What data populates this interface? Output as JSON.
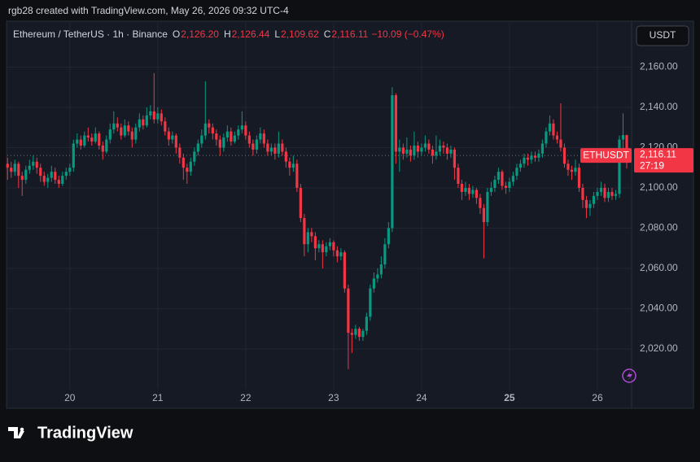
{
  "attribution": "rgb28 created with TradingView.com, May 26, 2026 09:32 UTC-4",
  "logo": "TradingView",
  "chart_data": {
    "type": "candlestick",
    "title": "Ethereum / TetherUS · 1h · Binance",
    "legend_ohlc": [
      {
        "label": "O",
        "value": "2,126.20"
      },
      {
        "label": "H",
        "value": "2,126.44"
      },
      {
        "label": "L",
        "value": "2,109.62"
      },
      {
        "label": "C",
        "value": "2,116.11"
      }
    ],
    "change": "−10.09 (−0.47%)",
    "currency": "USDT",
    "symbol": "ETHUSDT",
    "countdown": "27:19",
    "last_price": {
      "value": 2116.11,
      "label": "2,116.11"
    },
    "up_color": "#089981",
    "down_color": "#f23645",
    "grid": true,
    "xlim": [
      19.28,
      26.38
    ],
    "xticks": [
      20,
      21,
      22,
      23,
      24,
      25,
      26
    ],
    "ylim": [
      2000,
      2182
    ],
    "yticks": [
      {
        "value": 2020,
        "label": "2,020.00"
      },
      {
        "value": 2040,
        "label": "2,040.00"
      },
      {
        "value": 2060,
        "label": "2,060.00"
      },
      {
        "value": 2080,
        "label": "2,080.00"
      },
      {
        "value": 2100,
        "label": "2,100.00"
      },
      {
        "value": 2120,
        "label": "2,120.00"
      },
      {
        "value": 2140,
        "label": "2,140.00"
      },
      {
        "value": 2160,
        "label": "2,160.00"
      }
    ],
    "x": [
      19.2917,
      19.3333,
      19.375,
      19.4167,
      19.4583,
      19.5,
      19.5417,
      19.5833,
      19.625,
      19.6667,
      19.7083,
      19.75,
      19.7917,
      19.8333,
      19.875,
      19.9167,
      19.9583,
      20,
      20.0417,
      20.0833,
      20.125,
      20.1667,
      20.2083,
      20.25,
      20.2917,
      20.3333,
      20.375,
      20.4167,
      20.4583,
      20.5,
      20.5417,
      20.5833,
      20.625,
      20.6667,
      20.7083,
      20.75,
      20.7917,
      20.8333,
      20.875,
      20.9167,
      20.9583,
      21,
      21.0417,
      21.0833,
      21.125,
      21.1667,
      21.2083,
      21.25,
      21.2917,
      21.3333,
      21.375,
      21.4167,
      21.4583,
      21.5,
      21.5417,
      21.5833,
      21.625,
      21.6667,
      21.7083,
      21.75,
      21.7917,
      21.8333,
      21.875,
      21.9167,
      21.9583,
      22,
      22.0417,
      22.0833,
      22.125,
      22.1667,
      22.2083,
      22.25,
      22.2917,
      22.3333,
      22.375,
      22.4167,
      22.4583,
      22.5,
      22.5417,
      22.5833,
      22.625,
      22.6667,
      22.7083,
      22.75,
      22.7917,
      22.8333,
      22.875,
      22.9167,
      22.9583,
      23,
      23.0417,
      23.0833,
      23.125,
      23.1667,
      23.2083,
      23.25,
      23.2917,
      23.3333,
      23.375,
      23.4167,
      23.4583,
      23.5,
      23.5417,
      23.5833,
      23.625,
      23.6667,
      23.7083,
      23.75,
      23.7917,
      23.8333,
      23.875,
      23.9167,
      23.9583,
      24,
      24.0417,
      24.0833,
      24.125,
      24.1667,
      24.2083,
      24.25,
      24.2917,
      24.3333,
      24.375,
      24.4167,
      24.4583,
      24.5,
      24.5417,
      24.5833,
      24.625,
      24.6667,
      24.7083,
      24.75,
      24.7917,
      24.8333,
      24.875,
      24.9167,
      24.9583,
      25,
      25.0417,
      25.0833,
      25.125,
      25.1667,
      25.2083,
      25.25,
      25.2917,
      25.3333,
      25.375,
      25.4167,
      25.4583,
      25.5,
      25.5417,
      25.5833,
      25.625,
      25.6667,
      25.7083,
      25.75,
      25.7917,
      25.8333,
      25.875,
      25.9167,
      25.9583,
      26,
      26.0417,
      26.0833,
      26.125,
      26.1667,
      26.2083,
      26.25,
      26.2917,
      26.3333
    ],
    "ohlc": [
      [
        2112,
        2115,
        2104,
        2110
      ],
      [
        2110,
        2113,
        2105,
        2108
      ],
      [
        2108,
        2114,
        2106,
        2112
      ],
      [
        2112,
        2113,
        2100,
        2106
      ],
      [
        2106,
        2108,
        2096,
        2104
      ],
      [
        2104,
        2111,
        2102,
        2109
      ],
      [
        2109,
        2114,
        2107,
        2111
      ],
      [
        2111,
        2116,
        2109,
        2113
      ],
      [
        2113,
        2115,
        2107,
        2110
      ],
      [
        2110,
        2112,
        2103,
        2106
      ],
      [
        2106,
        2108,
        2101,
        2103
      ],
      [
        2103,
        2107,
        2100,
        2105
      ],
      [
        2105,
        2111,
        2103,
        2108
      ],
      [
        2108,
        2110,
        2102,
        2104
      ],
      [
        2104,
        2106,
        2100,
        2102
      ],
      [
        2102,
        2108,
        2101,
        2106
      ],
      [
        2106,
        2110,
        2104,
        2108
      ],
      [
        2108,
        2112,
        2106,
        2110
      ],
      [
        2110,
        2124,
        2108,
        2122
      ],
      [
        2122,
        2127,
        2120,
        2124
      ],
      [
        2124,
        2126,
        2119,
        2121
      ],
      [
        2121,
        2128,
        2120,
        2126
      ],
      [
        2126,
        2130,
        2123,
        2125
      ],
      [
        2125,
        2127,
        2121,
        2123
      ],
      [
        2123,
        2130,
        2122,
        2127
      ],
      [
        2127,
        2128,
        2119,
        2121
      ],
      [
        2121,
        2123,
        2114,
        2118
      ],
      [
        2118,
        2126,
        2117,
        2124
      ],
      [
        2124,
        2132,
        2122,
        2129
      ],
      [
        2129,
        2138,
        2127,
        2132
      ],
      [
        2132,
        2135,
        2128,
        2130
      ],
      [
        2130,
        2132,
        2124,
        2126
      ],
      [
        2126,
        2134,
        2125,
        2131
      ],
      [
        2131,
        2133,
        2126,
        2128
      ],
      [
        2128,
        2130,
        2120,
        2124
      ],
      [
        2124,
        2132,
        2122,
        2130
      ],
      [
        2130,
        2137,
        2128,
        2134
      ],
      [
        2134,
        2136,
        2129,
        2131
      ],
      [
        2131,
        2140,
        2130,
        2136
      ],
      [
        2136,
        2141,
        2134,
        2138
      ],
      [
        2138,
        2157,
        2132,
        2134
      ],
      [
        2134,
        2140,
        2132,
        2137
      ],
      [
        2137,
        2139,
        2131,
        2133
      ],
      [
        2133,
        2135,
        2126,
        2128
      ],
      [
        2128,
        2130,
        2121,
        2124
      ],
      [
        2124,
        2128,
        2122,
        2126
      ],
      [
        2126,
        2127,
        2117,
        2120
      ],
      [
        2120,
        2122,
        2112,
        2115
      ],
      [
        2115,
        2117,
        2104,
        2110
      ],
      [
        2110,
        2112,
        2102,
        2108
      ],
      [
        2108,
        2115,
        2106,
        2113
      ],
      [
        2113,
        2120,
        2111,
        2118
      ],
      [
        2118,
        2124,
        2116,
        2122
      ],
      [
        2122,
        2129,
        2120,
        2126
      ],
      [
        2126,
        2153,
        2124,
        2132
      ],
      [
        2132,
        2134,
        2127,
        2130
      ],
      [
        2130,
        2132,
        2124,
        2127
      ],
      [
        2127,
        2129,
        2121,
        2124
      ],
      [
        2124,
        2126,
        2116,
        2120
      ],
      [
        2120,
        2127,
        2118,
        2125
      ],
      [
        2125,
        2131,
        2123,
        2128
      ],
      [
        2128,
        2130,
        2121,
        2123
      ],
      [
        2123,
        2128,
        2122,
        2126
      ],
      [
        2126,
        2131,
        2124,
        2129
      ],
      [
        2129,
        2138,
        2127,
        2131
      ],
      [
        2131,
        2133,
        2124,
        2126
      ],
      [
        2126,
        2128,
        2120,
        2122
      ],
      [
        2122,
        2124,
        2116,
        2119
      ],
      [
        2119,
        2126,
        2117,
        2124
      ],
      [
        2124,
        2130,
        2122,
        2127
      ],
      [
        2127,
        2129,
        2120,
        2122
      ],
      [
        2122,
        2124,
        2116,
        2118
      ],
      [
        2118,
        2122,
        2116,
        2120
      ],
      [
        2120,
        2122,
        2114,
        2117
      ],
      [
        2117,
        2128,
        2115,
        2122
      ],
      [
        2122,
        2124,
        2116,
        2118
      ],
      [
        2118,
        2120,
        2110,
        2113
      ],
      [
        2113,
        2115,
        2106,
        2110
      ],
      [
        2110,
        2116,
        2108,
        2112
      ],
      [
        2112,
        2114,
        2098,
        2100
      ],
      [
        2100,
        2102,
        2083,
        2085
      ],
      [
        2085,
        2087,
        2066,
        2072
      ],
      [
        2072,
        2080,
        2068,
        2078
      ],
      [
        2078,
        2080,
        2073,
        2076
      ],
      [
        2076,
        2078,
        2064,
        2070
      ],
      [
        2070,
        2074,
        2068,
        2072
      ],
      [
        2072,
        2074,
        2060,
        2068
      ],
      [
        2068,
        2073,
        2066,
        2071
      ],
      [
        2071,
        2075,
        2069,
        2073
      ],
      [
        2073,
        2074,
        2066,
        2069
      ],
      [
        2069,
        2071,
        2063,
        2066
      ],
      [
        2066,
        2070,
        2064,
        2068
      ],
      [
        2068,
        2069,
        2048,
        2050
      ],
      [
        2050,
        2052,
        2010,
        2028
      ],
      [
        2028,
        2030,
        2018,
        2027
      ],
      [
        2027,
        2032,
        2025,
        2030
      ],
      [
        2030,
        2031,
        2024,
        2026
      ],
      [
        2026,
        2030,
        2024,
        2029
      ],
      [
        2029,
        2038,
        2027,
        2036
      ],
      [
        2036,
        2052,
        2034,
        2050
      ],
      [
        2050,
        2058,
        2048,
        2055
      ],
      [
        2055,
        2060,
        2053,
        2057
      ],
      [
        2057,
        2066,
        2055,
        2062
      ],
      [
        2062,
        2075,
        2060,
        2072
      ],
      [
        2072,
        2083,
        2070,
        2080
      ],
      [
        2080,
        2150,
        2078,
        2146
      ],
      [
        2146,
        2147,
        2112,
        2118
      ],
      [
        2118,
        2124,
        2108,
        2120
      ],
      [
        2120,
        2122,
        2114,
        2117
      ],
      [
        2117,
        2125,
        2115,
        2119
      ],
      [
        2119,
        2121,
        2113,
        2116
      ],
      [
        2116,
        2128,
        2114,
        2121
      ],
      [
        2121,
        2123,
        2115,
        2118
      ],
      [
        2118,
        2122,
        2116,
        2120
      ],
      [
        2120,
        2126,
        2118,
        2122
      ],
      [
        2122,
        2124,
        2117,
        2119
      ],
      [
        2119,
        2121,
        2112,
        2116
      ],
      [
        2116,
        2126,
        2114,
        2118
      ],
      [
        2118,
        2124,
        2116,
        2121
      ],
      [
        2121,
        2123,
        2117,
        2120
      ],
      [
        2120,
        2122,
        2114,
        2117
      ],
      [
        2117,
        2121,
        2115,
        2119
      ],
      [
        2119,
        2120,
        2104,
        2110
      ],
      [
        2110,
        2112,
        2100,
        2102
      ],
      [
        2102,
        2104,
        2094,
        2098
      ],
      [
        2098,
        2103,
        2096,
        2100
      ],
      [
        2100,
        2102,
        2094,
        2097
      ],
      [
        2097,
        2101,
        2095,
        2099
      ],
      [
        2099,
        2100,
        2092,
        2095
      ],
      [
        2095,
        2097,
        2087,
        2090
      ],
      [
        2090,
        2092,
        2065,
        2083
      ],
      [
        2083,
        2100,
        2081,
        2098
      ],
      [
        2098,
        2103,
        2096,
        2100
      ],
      [
        2100,
        2106,
        2098,
        2104
      ],
      [
        2104,
        2110,
        2102,
        2108
      ],
      [
        2108,
        2109,
        2099,
        2101
      ],
      [
        2101,
        2103,
        2097,
        2100
      ],
      [
        2100,
        2105,
        2098,
        2103
      ],
      [
        2103,
        2108,
        2101,
        2106
      ],
      [
        2106,
        2112,
        2104,
        2110
      ],
      [
        2110,
        2114,
        2108,
        2112
      ],
      [
        2112,
        2117,
        2110,
        2115
      ],
      [
        2115,
        2117,
        2111,
        2114
      ],
      [
        2114,
        2118,
        2112,
        2116
      ],
      [
        2116,
        2118,
        2113,
        2115
      ],
      [
        2115,
        2119,
        2113,
        2117
      ],
      [
        2117,
        2124,
        2115,
        2122
      ],
      [
        2122,
        2130,
        2120,
        2128
      ],
      [
        2128,
        2136,
        2126,
        2132
      ],
      [
        2132,
        2134,
        2124,
        2126
      ],
      [
        2126,
        2128,
        2122,
        2124
      ],
      [
        2124,
        2142,
        2118,
        2120
      ],
      [
        2120,
        2122,
        2110,
        2112
      ],
      [
        2112,
        2114,
        2106,
        2109
      ],
      [
        2109,
        2111,
        2104,
        2108
      ],
      [
        2108,
        2114,
        2106,
        2110
      ],
      [
        2110,
        2112,
        2098,
        2100
      ],
      [
        2100,
        2102,
        2090,
        2094
      ],
      [
        2094,
        2096,
        2085,
        2090
      ],
      [
        2090,
        2094,
        2086,
        2092
      ],
      [
        2092,
        2098,
        2090,
        2096
      ],
      [
        2096,
        2100,
        2094,
        2098
      ],
      [
        2098,
        2103,
        2096,
        2100
      ],
      [
        2100,
        2102,
        2093,
        2095
      ],
      [
        2095,
        2100,
        2093,
        2098
      ],
      [
        2098,
        2100,
        2094,
        2096
      ],
      [
        2096,
        2099,
        2094,
        2097
      ],
      [
        2097,
        2126,
        2095,
        2124
      ],
      [
        2124,
        2137,
        2118,
        2126.2
      ],
      [
        2126.2,
        2126.44,
        2109.62,
        2116.11
      ]
    ]
  }
}
